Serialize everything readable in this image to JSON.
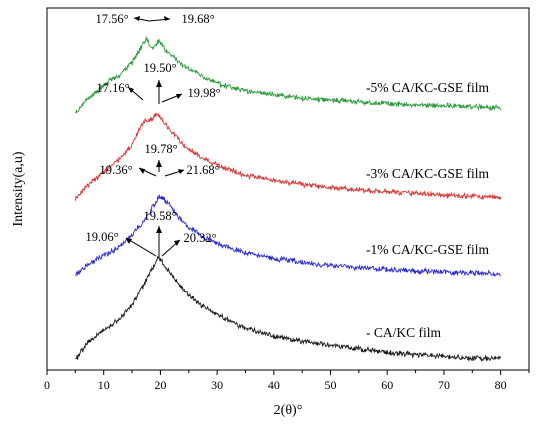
{
  "chart_data": {
    "type": "line",
    "xlabel": "2(θ)°",
    "ylabel": "Intensity(a,u)",
    "xlim": [
      0,
      85
    ],
    "x_ticks": [
      0,
      10,
      20,
      30,
      40,
      50,
      60,
      70,
      80
    ],
    "y_ticks_shown": false,
    "grid": false,
    "legend": "labels beside each curve",
    "series": [
      {
        "name": "- CA/KC film",
        "color": "#1a1a1a",
        "points": [
          [
            5,
            0.08
          ],
          [
            7,
            0.17
          ],
          [
            9,
            0.22
          ],
          [
            11,
            0.26
          ],
          [
            13,
            0.31
          ],
          [
            15,
            0.38
          ],
          [
            17,
            0.48
          ],
          [
            18,
            0.55
          ],
          [
            19.06,
            0.6
          ],
          [
            19.58,
            0.64
          ],
          [
            20.32,
            0.61
          ],
          [
            21,
            0.58
          ],
          [
            23,
            0.5
          ],
          [
            25,
            0.43
          ],
          [
            28,
            0.36
          ],
          [
            31,
            0.31
          ],
          [
            35,
            0.25
          ],
          [
            40,
            0.21
          ],
          [
            45,
            0.18
          ],
          [
            50,
            0.16
          ],
          [
            55,
            0.14
          ],
          [
            60,
            0.12
          ],
          [
            65,
            0.11
          ],
          [
            70,
            0.1
          ],
          [
            75,
            0.09
          ],
          [
            80,
            0.085
          ]
        ],
        "annotations": [
          "19.06°",
          "19.58°",
          "20.32°"
        ]
      },
      {
        "name": "-1% CA/KC-GSE film",
        "color": "#2b2bd6",
        "points": [
          [
            5,
            0.07
          ],
          [
            7,
            0.12
          ],
          [
            9,
            0.16
          ],
          [
            11,
            0.19
          ],
          [
            13,
            0.23
          ],
          [
            15,
            0.29
          ],
          [
            17,
            0.36
          ],
          [
            18.5,
            0.43
          ],
          [
            19.36,
            0.47
          ],
          [
            19.78,
            0.5
          ],
          [
            20.5,
            0.48
          ],
          [
            21.68,
            0.45
          ],
          [
            23,
            0.39
          ],
          [
            25,
            0.33
          ],
          [
            28,
            0.27
          ],
          [
            31,
            0.23
          ],
          [
            35,
            0.19
          ],
          [
            40,
            0.16
          ],
          [
            45,
            0.14
          ],
          [
            50,
            0.12
          ],
          [
            55,
            0.11
          ],
          [
            60,
            0.1
          ],
          [
            65,
            0.09
          ],
          [
            70,
            0.085
          ],
          [
            75,
            0.08
          ],
          [
            80,
            0.075
          ]
        ],
        "annotations": [
          "19.36°",
          "19.78°",
          "21.68°"
        ]
      },
      {
        "name": "-3% CA/KC-GSE film",
        "color": "#d63838",
        "points": [
          [
            5,
            0.08
          ],
          [
            7,
            0.15
          ],
          [
            9,
            0.2
          ],
          [
            11,
            0.25
          ],
          [
            13,
            0.3
          ],
          [
            15,
            0.37
          ],
          [
            16,
            0.44
          ],
          [
            17.16,
            0.5
          ],
          [
            18.5,
            0.51
          ],
          [
            19.5,
            0.54
          ],
          [
            19.98,
            0.52
          ],
          [
            21,
            0.48
          ],
          [
            23,
            0.41
          ],
          [
            25,
            0.35
          ],
          [
            28,
            0.29
          ],
          [
            31,
            0.25
          ],
          [
            35,
            0.21
          ],
          [
            40,
            0.18
          ],
          [
            45,
            0.16
          ],
          [
            50,
            0.14
          ],
          [
            55,
            0.13
          ],
          [
            60,
            0.12
          ],
          [
            65,
            0.11
          ],
          [
            70,
            0.1
          ],
          [
            75,
            0.095
          ],
          [
            80,
            0.09
          ]
        ],
        "annotations": [
          "17.16°",
          "19.50°",
          "19.98°"
        ]
      },
      {
        "name": "-5% CA/KC-GSE film",
        "color": "#2a9a3a",
        "points": [
          [
            5,
            0.05
          ],
          [
            7,
            0.12
          ],
          [
            9,
            0.17
          ],
          [
            11,
            0.22
          ],
          [
            13,
            0.26
          ],
          [
            15,
            0.32
          ],
          [
            16.5,
            0.4
          ],
          [
            17.56,
            0.45
          ],
          [
            18.6,
            0.4
          ],
          [
            19.68,
            0.44
          ],
          [
            21,
            0.39
          ],
          [
            23,
            0.33
          ],
          [
            25,
            0.29
          ],
          [
            28,
            0.24
          ],
          [
            31,
            0.2
          ],
          [
            35,
            0.17
          ],
          [
            40,
            0.15
          ],
          [
            45,
            0.13
          ],
          [
            50,
            0.12
          ],
          [
            55,
            0.11
          ],
          [
            60,
            0.1
          ],
          [
            65,
            0.095
          ],
          [
            70,
            0.09
          ],
          [
            75,
            0.085
          ],
          [
            80,
            0.08
          ]
        ],
        "annotations": [
          "17.56°",
          "19.68°"
        ]
      }
    ]
  }
}
